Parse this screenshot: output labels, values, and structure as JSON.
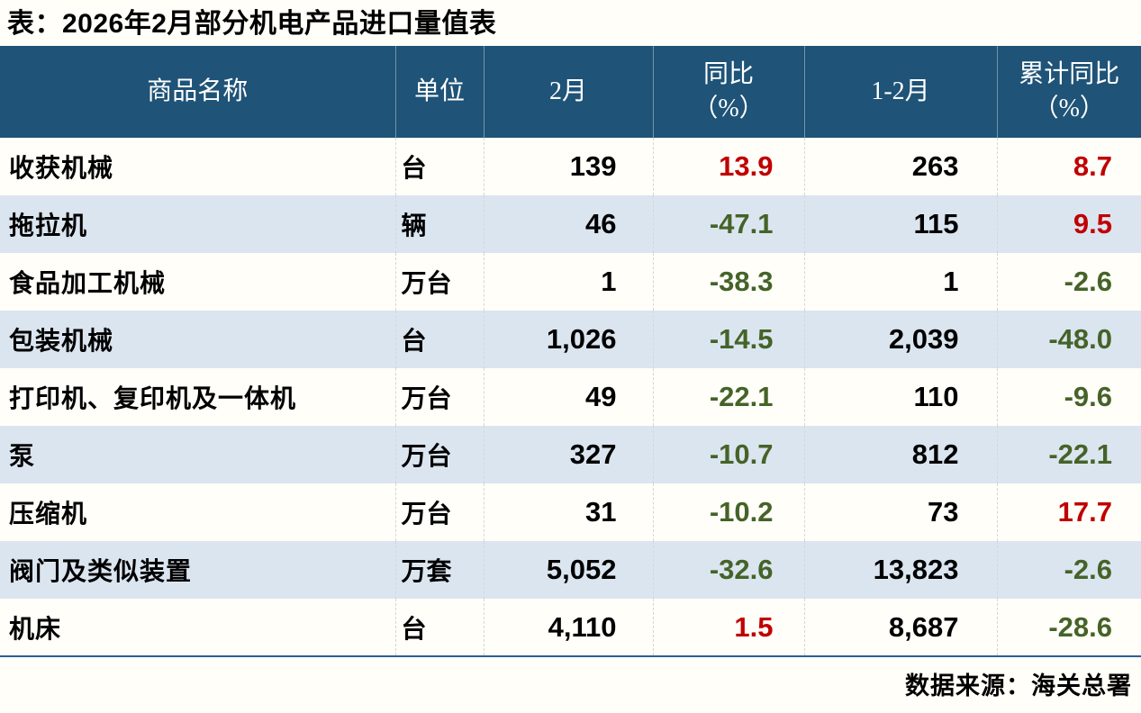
{
  "colors": {
    "header_bg": "#1F5377",
    "header_text": "#FFFFFF",
    "row_base": "#FFFEF9",
    "row_alt": "#DBE5F0",
    "positive": "#C00000",
    "negative": "#456328",
    "table_bottom_line": "#2E6094",
    "text": "#000000"
  },
  "chart_data": {
    "type": "table",
    "title": "表：2026年2月部分机电产品进口量值表",
    "source": "数据来源：海关总署",
    "columns": [
      "商品名称",
      "单位",
      "2月",
      "同比（%）",
      "1-2月",
      "累计同比（%）"
    ],
    "header_display": {
      "c1": "商品名称",
      "c2": "单位",
      "c3": "2月",
      "c4a": "同比",
      "c4b": "（%）",
      "c5": "1-2月",
      "c6a": "累计同比",
      "c6b": "（%）"
    },
    "rows": [
      {
        "name": "收获机械",
        "unit": "台",
        "feb": "139",
        "yoy": "13.9",
        "jan_feb": "263",
        "cum_yoy": "8.7"
      },
      {
        "name": "拖拉机",
        "unit": "辆",
        "feb": "46",
        "yoy": "-47.1",
        "jan_feb": "115",
        "cum_yoy": "9.5"
      },
      {
        "name": "食品加工机械",
        "unit": "万台",
        "feb": "1",
        "yoy": "-38.3",
        "jan_feb": "1",
        "cum_yoy": "-2.6"
      },
      {
        "name": "包装机械",
        "unit": "台",
        "feb": "1,026",
        "yoy": "-14.5",
        "jan_feb": "2,039",
        "cum_yoy": "-48.0"
      },
      {
        "name": "打印机、复印机及一体机",
        "unit": "万台",
        "feb": "49",
        "yoy": "-22.1",
        "jan_feb": "110",
        "cum_yoy": "-9.6"
      },
      {
        "name": "泵",
        "unit": "万台",
        "feb": "327",
        "yoy": "-10.7",
        "jan_feb": "812",
        "cum_yoy": "-22.1"
      },
      {
        "name": "压缩机",
        "unit": "万台",
        "feb": "31",
        "yoy": "-10.2",
        "jan_feb": "73",
        "cum_yoy": "17.7"
      },
      {
        "name": "阀门及类似装置",
        "unit": "万套",
        "feb": "5,052",
        "yoy": "-32.6",
        "jan_feb": "13,823",
        "cum_yoy": "-2.6"
      },
      {
        "name": "机床",
        "unit": "台",
        "feb": "4,110",
        "yoy": "1.5",
        "jan_feb": "8,687",
        "cum_yoy": "-28.6"
      }
    ]
  }
}
